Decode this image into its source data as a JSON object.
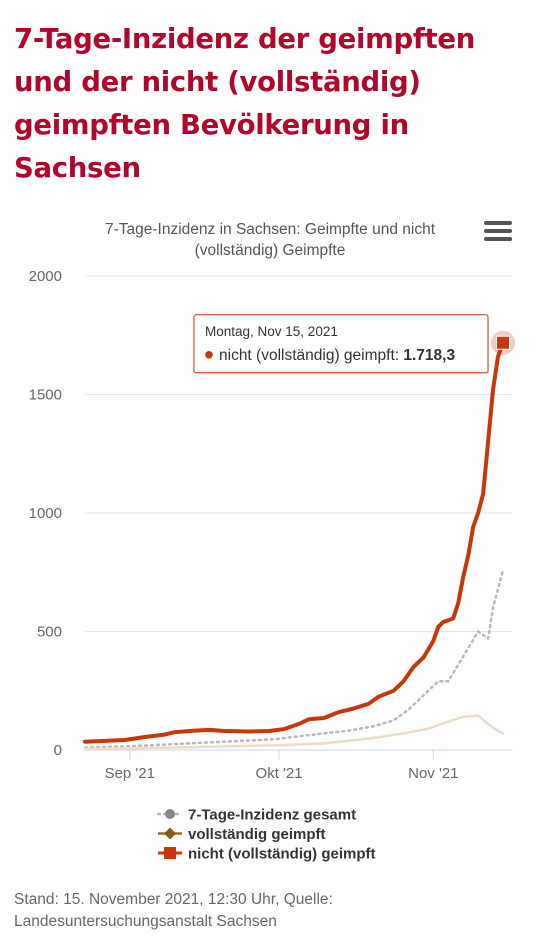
{
  "headline": "7-Tage-Inzidenz der geimpften und der nicht (vollständig) geimpften Bevölkerung in Sachsen",
  "menu_icon": "hamburger-menu-icon",
  "source": "Stand: 15. November 2021, 12:30 Uhr, Quelle: Landesuntersuchungsanstalt Sachsen",
  "tooltip": {
    "date": "Montag, Nov 15, 2021",
    "series": "nicht (vollständig) geimpft:",
    "value": "1.718,3"
  },
  "colors": {
    "gesamt": "#b8b8b8",
    "geimpft": "#ecdcc6",
    "ungeimpft": "#c8360c",
    "grid": "#e6e6e6",
    "headline": "#b0062c"
  },
  "chart_data": {
    "type": "line",
    "title": [
      "7-Tage-Inzidenz in Sachsen: Geimpfte und nicht",
      "(vollständig) Geimpfte"
    ],
    "x_start": "2021-08-23",
    "x_end": "2021-11-15",
    "x_ticks": [
      {
        "date": "2021-09-01",
        "label": "Sep '21"
      },
      {
        "date": "2021-10-01",
        "label": "Okt '21"
      },
      {
        "date": "2021-11-01",
        "label": "Nov '21"
      }
    ],
    "ylim": [
      0,
      2000
    ],
    "y_ticks": [
      0,
      500,
      1000,
      1500,
      2000
    ],
    "legend_position": "bottom",
    "series": [
      {
        "name": "7-Tage-Inzidenz gesamt",
        "style": "dotted",
        "marker": "circle",
        "points": [
          [
            "2021-08-23",
            10
          ],
          [
            "2021-08-31",
            15
          ],
          [
            "2021-09-10",
            25
          ],
          [
            "2021-09-20",
            35
          ],
          [
            "2021-09-30",
            45
          ],
          [
            "2021-10-05",
            58
          ],
          [
            "2021-10-10",
            70
          ],
          [
            "2021-10-15",
            82
          ],
          [
            "2021-10-20",
            100
          ],
          [
            "2021-10-24",
            125
          ],
          [
            "2021-10-27",
            170
          ],
          [
            "2021-10-30",
            230
          ],
          [
            "2021-11-02",
            290
          ],
          [
            "2021-11-04",
            290
          ],
          [
            "2021-11-06",
            360
          ],
          [
            "2021-11-08",
            430
          ],
          [
            "2021-11-10",
            500
          ],
          [
            "2021-11-12",
            470
          ],
          [
            "2021-11-13",
            600
          ],
          [
            "2021-11-15",
            760
          ]
        ]
      },
      {
        "name": "vollständig geimpft",
        "style": "solid",
        "marker": "diamond",
        "points": [
          [
            "2021-08-23",
            5
          ],
          [
            "2021-09-01",
            7
          ],
          [
            "2021-09-10",
            10
          ],
          [
            "2021-09-20",
            15
          ],
          [
            "2021-10-01",
            20
          ],
          [
            "2021-10-10",
            28
          ],
          [
            "2021-10-20",
            50
          ],
          [
            "2021-10-26",
            70
          ],
          [
            "2021-10-31",
            90
          ],
          [
            "2021-11-04",
            120
          ],
          [
            "2021-11-07",
            140
          ],
          [
            "2021-11-10",
            145
          ],
          [
            "2021-11-12",
            110
          ],
          [
            "2021-11-14",
            80
          ],
          [
            "2021-11-15",
            70
          ]
        ]
      },
      {
        "name": "nicht (vollständig) geimpft",
        "style": "solid",
        "marker": "square",
        "points": [
          [
            "2021-08-23",
            35
          ],
          [
            "2021-08-31",
            42
          ],
          [
            "2021-09-04",
            55
          ],
          [
            "2021-09-08",
            65
          ],
          [
            "2021-09-10",
            75
          ],
          [
            "2021-09-14",
            82
          ],
          [
            "2021-09-17",
            85
          ],
          [
            "2021-09-20",
            80
          ],
          [
            "2021-09-25",
            78
          ],
          [
            "2021-09-29",
            80
          ],
          [
            "2021-10-02",
            88
          ],
          [
            "2021-10-05",
            110
          ],
          [
            "2021-10-07",
            130
          ],
          [
            "2021-10-10",
            135
          ],
          [
            "2021-10-13",
            160
          ],
          [
            "2021-10-16",
            175
          ],
          [
            "2021-10-19",
            195
          ],
          [
            "2021-10-21",
            225
          ],
          [
            "2021-10-24",
            250
          ],
          [
            "2021-10-26",
            290
          ],
          [
            "2021-10-28",
            350
          ],
          [
            "2021-10-30",
            390
          ],
          [
            "2021-11-01",
            460
          ],
          [
            "2021-11-02",
            520
          ],
          [
            "2021-11-03",
            540
          ],
          [
            "2021-11-05",
            555
          ],
          [
            "2021-11-06",
            620
          ],
          [
            "2021-11-07",
            730
          ],
          [
            "2021-11-08",
            820
          ],
          [
            "2021-11-09",
            940
          ],
          [
            "2021-11-10",
            1000
          ],
          [
            "2021-11-11",
            1080
          ],
          [
            "2021-11-12",
            1300
          ],
          [
            "2021-11-13",
            1520
          ],
          [
            "2021-11-14",
            1660
          ],
          [
            "2021-11-15",
            1718.3
          ]
        ]
      }
    ]
  }
}
